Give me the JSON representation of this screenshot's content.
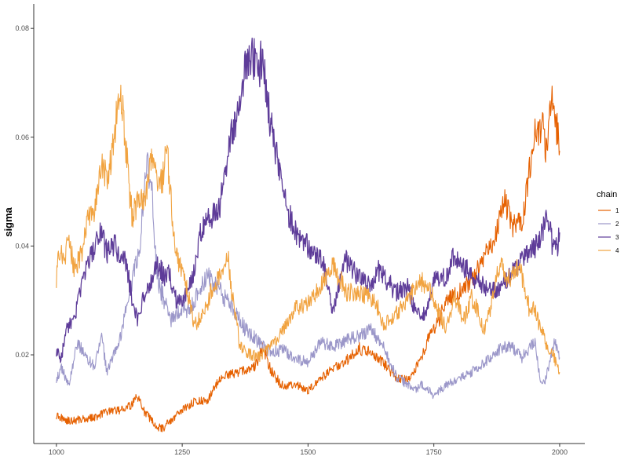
{
  "chart_data": {
    "type": "line",
    "xlabel": "",
    "ylabel": "sigma",
    "xlim": [
      955,
      2050
    ],
    "ylim": [
      0.0037,
      0.0845
    ],
    "xticks": [
      1000,
      1250,
      1500,
      1750,
      2000
    ],
    "xtick_labels": [
      "1000",
      "1250",
      "1500",
      "1750",
      "2000"
    ],
    "yticks": [
      0.02,
      0.04,
      0.06,
      0.08
    ],
    "ytick_labels": [
      "0.02",
      "0.04",
      "0.06",
      "0.08"
    ],
    "grid": false,
    "legend": {
      "title": "chain",
      "position": "right"
    },
    "series": [
      {
        "name": "1",
        "color": "#e66101",
        "points": [
          [
            1000,
            0.0088
          ],
          [
            1025,
            0.0078
          ],
          [
            1050,
            0.0082
          ],
          [
            1075,
            0.0085
          ],
          [
            1100,
            0.0095
          ],
          [
            1125,
            0.0098
          ],
          [
            1150,
            0.0108
          ],
          [
            1160,
            0.0126
          ],
          [
            1175,
            0.0095
          ],
          [
            1200,
            0.0068
          ],
          [
            1212,
            0.0065
          ],
          [
            1225,
            0.0078
          ],
          [
            1250,
            0.0098
          ],
          [
            1275,
            0.0115
          ],
          [
            1300,
            0.0115
          ],
          [
            1325,
            0.0158
          ],
          [
            1350,
            0.0165
          ],
          [
            1375,
            0.0172
          ],
          [
            1395,
            0.0178
          ],
          [
            1410,
            0.0212
          ],
          [
            1430,
            0.0165
          ],
          [
            1450,
            0.0142
          ],
          [
            1475,
            0.0145
          ],
          [
            1500,
            0.0135
          ],
          [
            1525,
            0.0155
          ],
          [
            1550,
            0.0175
          ],
          [
            1575,
            0.0188
          ],
          [
            1600,
            0.0212
          ],
          [
            1625,
            0.0205
          ],
          [
            1650,
            0.0185
          ],
          [
            1675,
            0.0158
          ],
          [
            1700,
            0.0155
          ],
          [
            1725,
            0.0192
          ],
          [
            1740,
            0.0235
          ],
          [
            1760,
            0.0262
          ],
          [
            1775,
            0.0302
          ],
          [
            1800,
            0.0315
          ],
          [
            1825,
            0.0335
          ],
          [
            1850,
            0.0378
          ],
          [
            1875,
            0.0425
          ],
          [
            1890,
            0.0485
          ],
          [
            1910,
            0.0435
          ],
          [
            1925,
            0.0442
          ],
          [
            1950,
            0.0605
          ],
          [
            1965,
            0.0625
          ],
          [
            1975,
            0.0565
          ],
          [
            1985,
            0.0695
          ],
          [
            1995,
            0.0615
          ],
          [
            2000,
            0.0575
          ]
        ]
      },
      {
        "name": "2",
        "color": "#9b97c9",
        "points": [
          [
            1000,
            0.0155
          ],
          [
            1010,
            0.0175
          ],
          [
            1025,
            0.0142
          ],
          [
            1040,
            0.0218
          ],
          [
            1050,
            0.0212
          ],
          [
            1075,
            0.0178
          ],
          [
            1090,
            0.0232
          ],
          [
            1100,
            0.0168
          ],
          [
            1125,
            0.0225
          ],
          [
            1150,
            0.0335
          ],
          [
            1165,
            0.0395
          ],
          [
            1180,
            0.0558
          ],
          [
            1190,
            0.0495
          ],
          [
            1200,
            0.0345
          ],
          [
            1225,
            0.0262
          ],
          [
            1250,
            0.0285
          ],
          [
            1265,
            0.0282
          ],
          [
            1280,
            0.0312
          ],
          [
            1300,
            0.0345
          ],
          [
            1320,
            0.0328
          ],
          [
            1335,
            0.0305
          ],
          [
            1350,
            0.0285
          ],
          [
            1375,
            0.0248
          ],
          [
            1400,
            0.0225
          ],
          [
            1425,
            0.0205
          ],
          [
            1450,
            0.0208
          ],
          [
            1475,
            0.0195
          ],
          [
            1500,
            0.0185
          ],
          [
            1525,
            0.0225
          ],
          [
            1550,
            0.0215
          ],
          [
            1575,
            0.0225
          ],
          [
            1600,
            0.0235
          ],
          [
            1625,
            0.0245
          ],
          [
            1650,
            0.0215
          ],
          [
            1675,
            0.0158
          ],
          [
            1700,
            0.0145
          ],
          [
            1715,
            0.0135
          ],
          [
            1725,
            0.0148
          ],
          [
            1750,
            0.0125
          ],
          [
            1775,
            0.0145
          ],
          [
            1800,
            0.0155
          ],
          [
            1825,
            0.0168
          ],
          [
            1850,
            0.0185
          ],
          [
            1875,
            0.0208
          ],
          [
            1900,
            0.0218
          ],
          [
            1925,
            0.0195
          ],
          [
            1950,
            0.0225
          ],
          [
            1960,
            0.0158
          ],
          [
            1970,
            0.0148
          ],
          [
            1985,
            0.0205
          ],
          [
            1990,
            0.0222
          ],
          [
            2000,
            0.0195
          ]
        ]
      },
      {
        "name": "3",
        "color": "#5e3c99",
        "points": [
          [
            1000,
            0.0205
          ],
          [
            1010,
            0.0195
          ],
          [
            1020,
            0.0248
          ],
          [
            1035,
            0.0265
          ],
          [
            1050,
            0.0325
          ],
          [
            1060,
            0.0365
          ],
          [
            1075,
            0.0395
          ],
          [
            1090,
            0.0428
          ],
          [
            1100,
            0.0385
          ],
          [
            1115,
            0.0405
          ],
          [
            1125,
            0.0385
          ],
          [
            1140,
            0.0365
          ],
          [
            1150,
            0.0305
          ],
          [
            1160,
            0.0262
          ],
          [
            1175,
            0.0312
          ],
          [
            1190,
            0.0335
          ],
          [
            1200,
            0.0365
          ],
          [
            1215,
            0.0345
          ],
          [
            1225,
            0.0355
          ],
          [
            1235,
            0.0305
          ],
          [
            1250,
            0.0292
          ],
          [
            1275,
            0.0355
          ],
          [
            1285,
            0.0425
          ],
          [
            1300,
            0.0445
          ],
          [
            1325,
            0.0475
          ],
          [
            1335,
            0.0535
          ],
          [
            1350,
            0.0615
          ],
          [
            1365,
            0.0655
          ],
          [
            1375,
            0.0725
          ],
          [
            1390,
            0.0755
          ],
          [
            1400,
            0.0712
          ],
          [
            1410,
            0.0755
          ],
          [
            1425,
            0.0625
          ],
          [
            1440,
            0.0565
          ],
          [
            1450,
            0.0495
          ],
          [
            1460,
            0.0465
          ],
          [
            1475,
            0.0425
          ],
          [
            1500,
            0.0398
          ],
          [
            1525,
            0.0385
          ],
          [
            1540,
            0.0325
          ],
          [
            1550,
            0.0282
          ],
          [
            1560,
            0.0322
          ],
          [
            1575,
            0.0375
          ],
          [
            1600,
            0.0345
          ],
          [
            1625,
            0.0325
          ],
          [
            1640,
            0.0355
          ],
          [
            1650,
            0.0345
          ],
          [
            1675,
            0.0315
          ],
          [
            1700,
            0.0325
          ],
          [
            1710,
            0.0285
          ],
          [
            1725,
            0.0265
          ],
          [
            1740,
            0.0295
          ],
          [
            1750,
            0.0335
          ],
          [
            1775,
            0.0345
          ],
          [
            1790,
            0.0385
          ],
          [
            1800,
            0.0375
          ],
          [
            1825,
            0.0345
          ],
          [
            1850,
            0.0325
          ],
          [
            1875,
            0.0315
          ],
          [
            1900,
            0.0345
          ],
          [
            1925,
            0.0375
          ],
          [
            1950,
            0.0395
          ],
          [
            1965,
            0.0425
          ],
          [
            1975,
            0.0465
          ],
          [
            1985,
            0.0405
          ],
          [
            1995,
            0.0395
          ],
          [
            2000,
            0.0425
          ]
        ]
      },
      {
        "name": "4",
        "color": "#f1a340",
        "points": [
          [
            1000,
            0.0335
          ],
          [
            1005,
            0.0395
          ],
          [
            1015,
            0.0375
          ],
          [
            1025,
            0.0415
          ],
          [
            1035,
            0.0355
          ],
          [
            1050,
            0.0385
          ],
          [
            1060,
            0.0445
          ],
          [
            1075,
            0.0465
          ],
          [
            1090,
            0.0545
          ],
          [
            1100,
            0.0525
          ],
          [
            1110,
            0.0565
          ],
          [
            1120,
            0.0645
          ],
          [
            1130,
            0.0665
          ],
          [
            1140,
            0.0565
          ],
          [
            1150,
            0.0455
          ],
          [
            1160,
            0.0475
          ],
          [
            1175,
            0.0485
          ],
          [
            1190,
            0.0565
          ],
          [
            1200,
            0.0515
          ],
          [
            1210,
            0.0515
          ],
          [
            1220,
            0.0585
          ],
          [
            1230,
            0.0445
          ],
          [
            1240,
            0.0385
          ],
          [
            1250,
            0.0345
          ],
          [
            1260,
            0.0315
          ],
          [
            1275,
            0.0255
          ],
          [
            1290,
            0.0275
          ],
          [
            1300,
            0.0295
          ],
          [
            1310,
            0.0325
          ],
          [
            1325,
            0.0345
          ],
          [
            1340,
            0.0385
          ],
          [
            1350,
            0.0305
          ],
          [
            1365,
            0.0215
          ],
          [
            1375,
            0.0205
          ],
          [
            1400,
            0.0195
          ],
          [
            1425,
            0.0215
          ],
          [
            1450,
            0.0245
          ],
          [
            1475,
            0.0285
          ],
          [
            1500,
            0.0295
          ],
          [
            1510,
            0.0305
          ],
          [
            1525,
            0.0325
          ],
          [
            1550,
            0.0365
          ],
          [
            1575,
            0.0315
          ],
          [
            1600,
            0.0315
          ],
          [
            1625,
            0.0305
          ],
          [
            1640,
            0.0285
          ],
          [
            1650,
            0.0255
          ],
          [
            1675,
            0.0275
          ],
          [
            1700,
            0.0305
          ],
          [
            1725,
            0.0335
          ],
          [
            1740,
            0.0325
          ],
          [
            1750,
            0.0305
          ],
          [
            1760,
            0.0275
          ],
          [
            1775,
            0.0245
          ],
          [
            1790,
            0.0305
          ],
          [
            1800,
            0.0285
          ],
          [
            1810,
            0.0265
          ],
          [
            1825,
            0.0305
          ],
          [
            1840,
            0.0275
          ],
          [
            1850,
            0.0245
          ],
          [
            1860,
            0.0275
          ],
          [
            1875,
            0.0345
          ],
          [
            1885,
            0.0365
          ],
          [
            1900,
            0.0335
          ],
          [
            1915,
            0.0365
          ],
          [
            1925,
            0.0345
          ],
          [
            1940,
            0.0285
          ],
          [
            1950,
            0.0285
          ],
          [
            1960,
            0.0255
          ],
          [
            1975,
            0.0215
          ],
          [
            1985,
            0.0205
          ],
          [
            2000,
            0.0168
          ]
        ]
      }
    ]
  }
}
